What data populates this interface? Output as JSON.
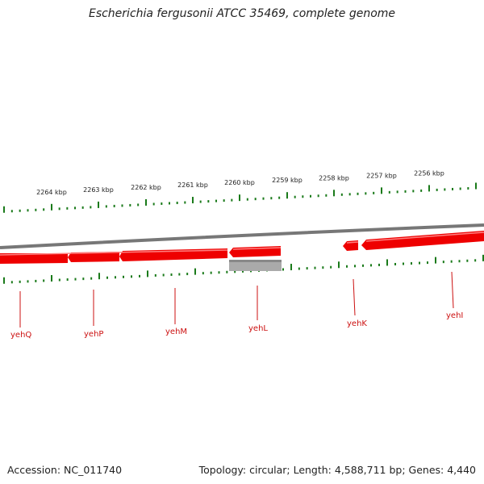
{
  "title": "Escherichia fergusonii ATCC 35469, complete genome",
  "footer": {
    "accession": "Accession: NC_011740",
    "summary": "Topology: circular; Length: 4,588,711 bp; Genes: 4,440"
  },
  "colors": {
    "gene_red": "#ee0000",
    "gene_label": "#cc1111",
    "tick_green": "#1a7a1a",
    "backbone": "#777777",
    "gray_feature": "#aaaaaa"
  },
  "scale": {
    "unit": "kbp",
    "labels": [
      "2264 kbp",
      "2263 kbp",
      "2262 kbp",
      "2261 kbp",
      "2260 kbp",
      "2259 kbp",
      "2258 kbp",
      "2257 kbp",
      "2256 kbp"
    ]
  },
  "genes": [
    "yehQ",
    "yehP",
    "yehM",
    "yehL",
    "yehK",
    "yehI"
  ]
}
